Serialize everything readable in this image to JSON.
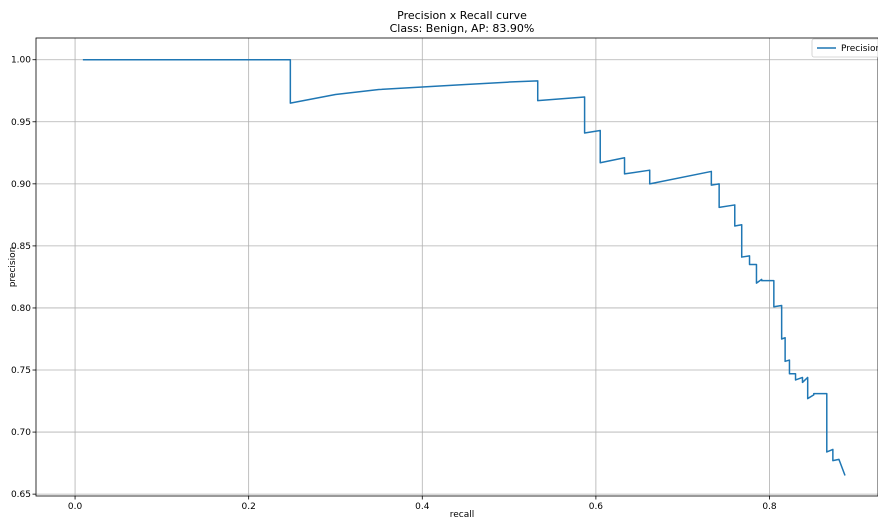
{
  "chart_data": {
    "type": "line",
    "title": "Precision x Recall curve",
    "subtitle": "Class: Benign, AP: 83.90%",
    "xlabel": "recall",
    "ylabel": "precision",
    "xlim": [
      -0.045,
      0.925
    ],
    "ylim": [
      0.6485,
      1.0175
    ],
    "xticks": [
      0.0,
      0.2,
      0.4,
      0.6,
      0.8
    ],
    "xtick_labels": [
      "0.0",
      "0.2",
      "0.4",
      "0.6",
      "0.8"
    ],
    "yticks": [
      0.65,
      0.7,
      0.75,
      0.8,
      0.85,
      0.9,
      0.95,
      1.0
    ],
    "ytick_labels": [
      "0.65",
      "0.70",
      "0.75",
      "0.80",
      "0.85",
      "0.90",
      "0.95",
      "1.00"
    ],
    "grid": true,
    "legend_position": "top-right",
    "colors": {
      "series": "#1f77b4"
    },
    "series": [
      {
        "name": "Precision",
        "x": [
          0.009,
          0.248,
          0.248,
          0.3,
          0.35,
          0.4,
          0.45,
          0.5,
          0.533,
          0.533,
          0.587,
          0.587,
          0.605,
          0.605,
          0.633,
          0.633,
          0.662,
          0.662,
          0.733,
          0.733,
          0.742,
          0.742,
          0.76,
          0.76,
          0.768,
          0.768,
          0.777,
          0.777,
          0.785,
          0.785,
          0.791,
          0.791,
          0.805,
          0.805,
          0.814,
          0.814,
          0.818,
          0.818,
          0.823,
          0.823,
          0.83,
          0.83,
          0.838,
          0.838,
          0.844,
          0.844,
          0.851,
          0.851,
          0.866,
          0.866,
          0.873,
          0.873,
          0.88,
          0.88,
          0.887
        ],
        "y": [
          1.0,
          1.0,
          0.965,
          0.972,
          0.976,
          0.978,
          0.98,
          0.982,
          0.983,
          0.967,
          0.97,
          0.941,
          0.943,
          0.917,
          0.921,
          0.908,
          0.911,
          0.9,
          0.91,
          0.899,
          0.9,
          0.881,
          0.883,
          0.866,
          0.867,
          0.841,
          0.842,
          0.835,
          0.835,
          0.82,
          0.823,
          0.822,
          0.822,
          0.801,
          0.802,
          0.775,
          0.776,
          0.757,
          0.758,
          0.747,
          0.747,
          0.742,
          0.744,
          0.74,
          0.744,
          0.727,
          0.73,
          0.731,
          0.731,
          0.684,
          0.686,
          0.677,
          0.678,
          0.678,
          0.665
        ]
      }
    ]
  }
}
